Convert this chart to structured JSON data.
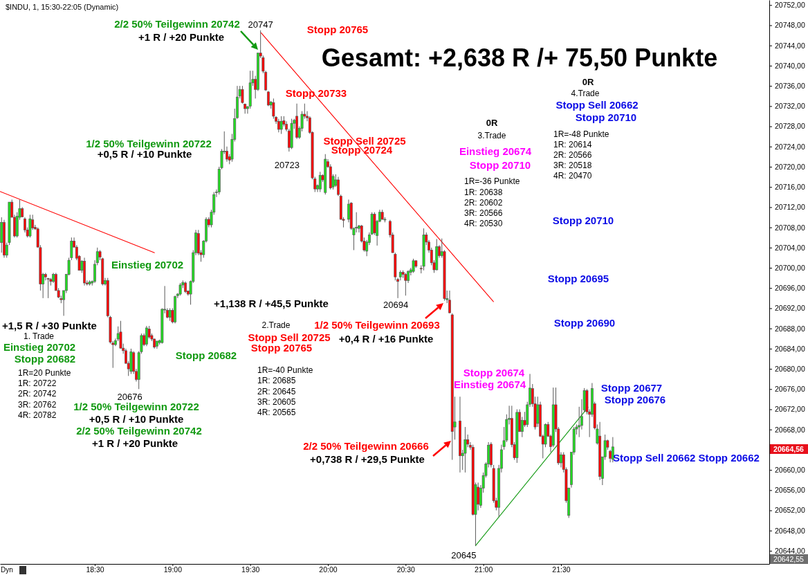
{
  "chart_data": {
    "type": "candlestick",
    "title": "$INDU, 1, 15:30-22:05 (Dynamic)",
    "subtitle": "Gesamt: +2,638 R /+ 75,50 Punkte",
    "x": [
      17.9,
      17.9167,
      17.9333,
      17.95,
      17.9667,
      17.9833,
      18,
      18.0167,
      18.0333,
      18.05,
      18.0667,
      18.0833,
      18.1,
      18.1167,
      18.1333,
      18.15,
      18.1667,
      18.1833,
      18.2,
      18.2167,
      18.2333,
      18.25,
      18.2667,
      18.2833,
      18.3,
      18.3167,
      18.3333,
      18.35,
      18.3667,
      18.3833,
      18.4,
      18.4167,
      18.4333,
      18.45,
      18.4667,
      18.4833,
      18.5,
      18.5167,
      18.5333,
      18.55,
      18.5667,
      18.5833,
      18.6,
      18.6167,
      18.6333,
      18.65,
      18.6667,
      18.6833,
      18.7,
      18.7167,
      18.7333,
      18.75,
      18.7667,
      18.7833,
      18.8,
      18.8167,
      18.8333,
      18.85,
      18.8667,
      18.8833,
      18.9,
      18.9167,
      18.9333,
      18.95,
      18.9667,
      18.9833,
      19,
      19.0167,
      19.0333,
      19.05,
      19.0667,
      19.0833,
      19.1,
      19.1167,
      19.1333,
      19.15,
      19.1667,
      19.1833,
      19.2,
      19.2167,
      19.2333,
      19.25,
      19.2667,
      19.2833,
      19.3,
      19.3167,
      19.3333,
      19.35,
      19.3667,
      19.3833,
      19.4,
      19.4167,
      19.4333,
      19.45,
      19.4667,
      19.4833,
      19.5,
      19.5167,
      19.5333,
      19.55,
      19.5667,
      19.5833,
      19.6,
      19.6167,
      19.6333,
      19.65,
      19.6667,
      19.6833,
      19.7,
      19.7167,
      19.7333,
      19.75,
      19.7667,
      19.7833,
      19.8,
      19.8167,
      19.8333,
      19.85,
      19.8667,
      19.8833,
      19.9,
      19.9167,
      19.9333,
      19.95,
      19.9667,
      19.9833,
      20,
      20.0167,
      20.0333,
      20.05,
      20.0667,
      20.0833,
      20.1,
      20.1333,
      20.15,
      20.1667,
      20.1833,
      20.2,
      20.2167,
      20.2333,
      20.25,
      20.2667,
      20.2833,
      20.3,
      20.3167,
      20.3333,
      20.35,
      20.3667,
      20.4,
      20.4167,
      20.4333,
      20.45,
      20.4667,
      20.4833,
      20.5,
      20.5167,
      20.5333,
      20.55,
      20.5667,
      20.6,
      20.6167,
      20.6333,
      20.65,
      20.6667,
      20.6833,
      20.7,
      20.7167,
      20.7333,
      20.75,
      20.7667,
      20.7833,
      20.8,
      20.8167,
      20.85,
      20.8667,
      20.8833,
      20.9,
      20.9167,
      20.9333,
      20.95,
      20.9667,
      20.9833,
      21,
      21.0167,
      21.0333,
      21.05,
      21.0667,
      21.0833,
      21.1,
      21.1167,
      21.1333,
      21.15,
      21.1667,
      21.1833,
      21.2,
      21.2167,
      21.2333,
      21.25,
      21.2667,
      21.2833,
      21.3,
      21.3167,
      21.3333,
      21.35,
      21.3667,
      21.3833,
      21.4,
      21.4167,
      21.4333,
      21.45,
      21.4667,
      21.4833,
      21.5,
      21.5167,
      21.5333,
      21.55,
      21.5667,
      21.5833,
      21.6,
      21.6167,
      21.6333,
      21.65,
      21.6667,
      21.6833,
      21.7,
      21.7167,
      21.7333,
      21.75,
      21.7667,
      21.7833,
      21.8,
      21.8167,
      21.8333
    ],
    "ohlc": [
      [
        20705,
        20710,
        20703,
        20709
      ],
      [
        20709,
        20709.5,
        20702,
        20702.5
      ],
      [
        20702.5,
        20705,
        20702,
        20704.5
      ],
      [
        20705,
        20713,
        20704.5,
        20713
      ],
      [
        20713,
        20713.5,
        20710,
        20710
      ],
      [
        20710,
        20710.5,
        20706,
        20706.3
      ],
      [
        20706.3,
        20711,
        20706,
        20710.2
      ],
      [
        20710,
        20713.5,
        20709.5,
        20711.7
      ],
      [
        20711.7,
        20712,
        20710,
        20710.1
      ],
      [
        20709.7,
        20710,
        20707,
        20707.5
      ],
      [
        20707.5,
        20708,
        20706,
        20706.3
      ],
      [
        20706.3,
        20710.5,
        20706,
        20709.7
      ],
      [
        20709.5,
        20710.5,
        20707.5,
        20707.9
      ],
      [
        20708,
        20708.5,
        20707.5,
        20707.7
      ],
      [
        20707.7,
        20708,
        20704,
        20704.1
      ],
      [
        20704,
        20704.5,
        20695.5,
        20696.8
      ],
      [
        20696.8,
        20699,
        20694,
        20698.7
      ],
      [
        20698.7,
        20699,
        20697.5,
        20698.2
      ],
      [
        20697.9,
        20698,
        20694,
        20697.8
      ],
      [
        20697.7,
        20698,
        20696.5,
        20697.3
      ],
      [
        20697.3,
        20699,
        20697,
        20698.7
      ],
      [
        20698.7,
        20699,
        20695.5,
        20695.5
      ],
      [
        20695.5,
        20696,
        20694,
        20694.2
      ],
      [
        20693.9,
        20694.5,
        20693,
        20693.7
      ],
      [
        20693.7,
        20695.5,
        20690.5,
        20695.5
      ],
      [
        20695.5,
        20698.8,
        20695,
        20698.7
      ],
      [
        20698.7,
        20702,
        20698.5,
        20701.5
      ],
      [
        20702,
        20706,
        20701.5,
        20705.3
      ],
      [
        20705.3,
        20706,
        20704,
        20704.1
      ],
      [
        20704.1,
        20704.5,
        20701.5,
        20701.9
      ],
      [
        20702.3,
        20702.5,
        20699.5,
        20699.5
      ],
      [
        20699.5,
        20701.5,
        20699,
        20701.3
      ],
      [
        20701.3,
        20702,
        20696.5,
        20697
      ],
      [
        20697,
        20697.5,
        20696.5,
        20696.8
      ],
      [
        20696.8,
        20697.5,
        20696.5,
        20697.2
      ],
      [
        20697,
        20697.5,
        20696.5,
        20697.3
      ],
      [
        20697.3,
        20701.5,
        20697,
        20700.7
      ],
      [
        20701,
        20704,
        20700.5,
        20703.2
      ],
      [
        20703.2,
        20703.5,
        20701.5,
        20702.1
      ],
      [
        20701.8,
        20702,
        20696.5,
        20696.8
      ],
      [
        20696.8,
        20698,
        20696.5,
        20697.5
      ],
      [
        20697.5,
        20698,
        20690.2,
        20690.5
      ],
      [
        20690.2,
        20690.5,
        20685,
        20685.3
      ],
      [
        20685.1,
        20685.5,
        20680.2,
        20684.8
      ],
      [
        20684.8,
        20686,
        20684.5,
        20685.6
      ],
      [
        20685.9,
        20688.4,
        20685.5,
        20687
      ],
      [
        20687.3,
        20689.5,
        20684,
        20684.1
      ],
      [
        20684.1,
        20685,
        20683,
        20683.6
      ],
      [
        20683.6,
        20684,
        20681,
        20681.1
      ],
      [
        20681.1,
        20681.5,
        20678.6,
        20680
      ],
      [
        20679.5,
        20684,
        20679,
        20683.4
      ],
      [
        20683.2,
        20683.5,
        20679,
        20679.5
      ],
      [
        20679.5,
        20680,
        20677.5,
        20677.9
      ],
      [
        20677.9,
        20683.5,
        20676,
        20683.2
      ],
      [
        20683.4,
        20687,
        20683,
        20686.6
      ],
      [
        20686.6,
        20687,
        20684.5,
        20684.8
      ],
      [
        20684.9,
        20688.5,
        20684.5,
        20688.1
      ],
      [
        20687.9,
        20688.5,
        20686,
        20686.3
      ],
      [
        20686.6,
        20687,
        20685.5,
        20685.9
      ],
      [
        20685.9,
        20686,
        20684,
        20684.3
      ],
      [
        20684.5,
        20685.5,
        20684,
        20685.5
      ],
      [
        20685.2,
        20685.8,
        20684.8,
        20685.6
      ],
      [
        20685.2,
        20692,
        20685,
        20691.8
      ],
      [
        20691.8,
        20696.4,
        20691,
        20691.8
      ],
      [
        20691.6,
        20692,
        20690,
        20690.2
      ],
      [
        20690.2,
        20692,
        20689.5,
        20691.6
      ],
      [
        20691.6,
        20692,
        20689,
        20689.3
      ],
      [
        20689.3,
        20694.5,
        20689,
        20694.3
      ],
      [
        20694.5,
        20695,
        20694,
        20694.8
      ],
      [
        20694.8,
        20697,
        20694.5,
        20696.6
      ],
      [
        20696.6,
        20697.5,
        20696,
        20697.1
      ],
      [
        20697,
        20697.3,
        20695,
        20695.3
      ],
      [
        20695.4,
        20695.5,
        20694.5,
        20694.8
      ],
      [
        20694.8,
        20697.5,
        20692.7,
        20697.3
      ],
      [
        20697.3,
        20703.5,
        20697,
        20703
      ],
      [
        20703,
        20707.5,
        20702.5,
        20706.9
      ],
      [
        20706.8,
        20707.5,
        20702.5,
        20702.9
      ],
      [
        20703,
        20703.5,
        20701.2,
        20702.6
      ],
      [
        20702.6,
        20705.5,
        20702,
        20705.3
      ],
      [
        20705.3,
        20710,
        20705,
        20709.6
      ],
      [
        20709.6,
        20710,
        20708,
        20708.5
      ],
      [
        20708.5,
        20711.5,
        20708,
        20711
      ],
      [
        20711,
        20715,
        20710.5,
        20714.5
      ],
      [
        20714.9,
        20715.5,
        20714,
        20715
      ],
      [
        20715,
        20720,
        20714.5,
        20719.5
      ],
      [
        20719.8,
        20723.5,
        20719.5,
        20723.1
      ],
      [
        20723.1,
        20727,
        20722.5,
        20723.1
      ],
      [
        20723.1,
        20724,
        20721,
        20721.5
      ],
      [
        20722,
        20722.5,
        20720.5,
        20721.3
      ],
      [
        20721.5,
        20726.5,
        20721,
        20725.4
      ],
      [
        20725.4,
        20731.5,
        20725,
        20729.5
      ],
      [
        20729.7,
        20736,
        20729.5,
        20733.8
      ],
      [
        20734,
        20736,
        20733.5,
        20735.3
      ],
      [
        20735.3,
        20736,
        20732.5,
        20732.7
      ],
      [
        20732.4,
        20732.5,
        20730.5,
        20731.5
      ],
      [
        20731.5,
        20732,
        20730.5,
        20731.9
      ],
      [
        20732,
        20739,
        20731.5,
        20736.6
      ],
      [
        20736.6,
        20739,
        20736,
        20737.3
      ],
      [
        20737.3,
        20738,
        20733.5,
        20735.3
      ],
      [
        20735.3,
        20742.5,
        20735,
        20742.5
      ],
      [
        20742.5,
        20747,
        20741.5,
        20741.9
      ],
      [
        20741.6,
        20742,
        20738.5,
        20738.9
      ],
      [
        20738.7,
        20739,
        20735,
        20735.2
      ],
      [
        20734.8,
        20735,
        20732,
        20732.2
      ],
      [
        20732.2,
        20733,
        20731.5,
        20732.8
      ],
      [
        20732.7,
        20733.5,
        20729.5,
        20730
      ],
      [
        20729.8,
        20730,
        20728.5,
        20729
      ],
      [
        20729,
        20729.5,
        20726.8,
        20727.4
      ],
      [
        20727.4,
        20730,
        20726.5,
        20729
      ],
      [
        20729.1,
        20730,
        20728,
        20728.4
      ],
      [
        20728.4,
        20729,
        20727,
        20727.4
      ],
      [
        20727.1,
        20727.5,
        20723,
        20723.8
      ],
      [
        20723.8,
        20729.5,
        20723.5,
        20728.6
      ],
      [
        20728.6,
        20729.5,
        20727.5,
        20729.2
      ],
      [
        20730,
        20732.5,
        20725.5,
        20725.8
      ],
      [
        20725.8,
        20728,
        20725.5,
        20727.6
      ],
      [
        20727.6,
        20731,
        20727,
        20730.4
      ],
      [
        20730.4,
        20732.5,
        20729.5,
        20730
      ],
      [
        20730,
        20731,
        20729,
        20729.7
      ],
      [
        20729.7,
        20730,
        20726.5,
        20726.8
      ],
      [
        20726.8,
        20727,
        20717.5,
        20717.8
      ],
      [
        20717.6,
        20718,
        20715,
        20715.6
      ],
      [
        20715.6,
        20716.5,
        20715,
        20716.3
      ],
      [
        20715.6,
        20719,
        20715,
        20718.3
      ],
      [
        20718.3,
        20718.5,
        20717,
        20717.4
      ],
      [
        20714.9,
        20722.5,
        20714.5,
        20721.5
      ],
      [
        20721,
        20721.5,
        20719.8,
        20720
      ],
      [
        20720,
        20720.5,
        20715.5,
        20715.8
      ],
      [
        20716,
        20718.5,
        20715.5,
        20718.1
      ],
      [
        20716.3,
        20718.5,
        20716,
        20717.4
      ],
      [
        20717.4,
        20718,
        20714.2,
        20714.5
      ],
      [
        20714.2,
        20714.5,
        20709.5,
        20709.6
      ],
      [
        20709.6,
        20710,
        20708,
        20709.4
      ],
      [
        20709.6,
        20713.5,
        20709,
        20712.6
      ],
      [
        20712.8,
        20713,
        20707.5,
        20707.8
      ],
      [
        20706.5,
        20708,
        20703.5,
        20707.8
      ],
      [
        20708,
        20711,
        20707,
        20708
      ],
      [
        20707.8,
        20708.5,
        20707,
        20708.3
      ],
      [
        20708.3,
        20708.5,
        20705,
        20705.3
      ],
      [
        20705.3,
        20706,
        20703.2,
        20703.5
      ],
      [
        20703.3,
        20705.5,
        20702.3,
        20705.1
      ],
      [
        20705,
        20707,
        20704.5,
        20706.5
      ],
      [
        20706.7,
        20711,
        20706.5,
        20710.6
      ],
      [
        20710.6,
        20711,
        20706.5,
        20706.9
      ],
      [
        20706.4,
        20709.5,
        20704.4,
        20709.2
      ],
      [
        20709.2,
        20711.5,
        20709,
        20711
      ],
      [
        20711,
        20711.5,
        20709.5,
        20709.6
      ],
      [
        20709.6,
        20710,
        20709,
        20709.6
      ],
      [
        20709.2,
        20709.5,
        20706,
        20706.5
      ],
      [
        20706.5,
        20707,
        20703,
        20703
      ],
      [
        20702.7,
        20703,
        20697.5,
        20698.2
      ],
      [
        20697.7,
        20698,
        20694,
        20697.3
      ],
      [
        20698.2,
        20699.5,
        20697.5,
        20699.1
      ],
      [
        20699.1,
        20699.5,
        20698,
        20698.7
      ],
      [
        20698.7,
        20699,
        20694.5,
        20697.5
      ],
      [
        20697.5,
        20699.5,
        20697,
        20699.3
      ],
      [
        20699.1,
        20700,
        20698.5,
        20699.6
      ],
      [
        20699.3,
        20701.8,
        20699,
        20701.4
      ],
      [
        20701.4,
        20701.5,
        20700,
        20700.3
      ],
      [
        20699.9,
        20700.5,
        20698.9,
        20699.8
      ],
      [
        20700.3,
        20707.8,
        20699.5,
        20706.5
      ],
      [
        20706.5,
        20707,
        20704.5,
        20705.1
      ],
      [
        20705.1,
        20705.5,
        20703,
        20703.5
      ],
      [
        20703.5,
        20704,
        20700.5,
        20701
      ],
      [
        20701,
        20701.5,
        20699,
        20699.6
      ],
      [
        20699.6,
        20705.7,
        20699.5,
        20704.2
      ],
      [
        20704.2,
        20704.5,
        20702,
        20702.4
      ],
      [
        20702.4,
        20705.8,
        20702,
        20703.2
      ],
      [
        20703.2,
        20703.5,
        20693.5,
        20693.9
      ],
      [
        20693.7,
        20695.5,
        20693,
        20693.9
      ],
      [
        20693.6,
        20695.5,
        20691,
        20691.1
      ],
      [
        20690.7,
        20691,
        20662,
        20667.6
      ],
      [
        20668.5,
        20674.5,
        20666,
        20669.5
      ],
      [
        20669.7,
        20674.5,
        20659.5,
        20662.8
      ],
      [
        20662.8,
        20664,
        20660,
        20663.3
      ],
      [
        20663.3,
        20668.5,
        20659.5,
        20666
      ],
      [
        20666,
        20667,
        20664.5,
        20665.1
      ],
      [
        20664.9,
        20665.5,
        20664,
        20664.5
      ],
      [
        20664.5,
        20665,
        20651,
        20651.2
      ],
      [
        20651.2,
        20657.5,
        20645,
        20657.1
      ],
      [
        20656.6,
        20657.5,
        20652,
        20653.2
      ],
      [
        20653,
        20657,
        20652.5,
        20656.4
      ],
      [
        20656.4,
        20659.5,
        20655.5,
        20658.9
      ],
      [
        20658.9,
        20661.5,
        20658.5,
        20661.2
      ],
      [
        20661.2,
        20665.5,
        20660.5,
        20664.9
      ],
      [
        20665.1,
        20665.5,
        20660.5,
        20661
      ],
      [
        20660.3,
        20661,
        20653.5,
        20653.9
      ],
      [
        20653.9,
        20654.5,
        20652,
        20652.6
      ],
      [
        20652.6,
        20661,
        20650.7,
        20660.3
      ],
      [
        20660.3,
        20665,
        20659.5,
        20664
      ],
      [
        20664.6,
        20668.5,
        20664,
        20665.8
      ],
      [
        20665.9,
        20671,
        20665.5,
        20670
      ],
      [
        20670,
        20672.7,
        20669,
        20670.2
      ],
      [
        20670.2,
        20672.7,
        20664.5,
        20665
      ],
      [
        20665,
        20665.5,
        20662,
        20662.4
      ],
      [
        20662.4,
        20672,
        20661.4,
        20671.4
      ],
      [
        20671.4,
        20672,
        20667.5,
        20667.6
      ],
      [
        20667.6,
        20670.5,
        20666.5,
        20669.8
      ],
      [
        20669.8,
        20671.5,
        20668.5,
        20668.9
      ],
      [
        20669,
        20673.5,
        20668.5,
        20672.9
      ],
      [
        20673,
        20679,
        20672.5,
        20676.2
      ],
      [
        20676.1,
        20677,
        20672.5,
        20673.1
      ],
      [
        20673.1,
        20674.5,
        20668,
        20668.5
      ],
      [
        20669.2,
        20674.5,
        20668.5,
        20672.9
      ],
      [
        20672.9,
        20673.5,
        20666.5,
        20666.7
      ],
      [
        20666.7,
        20667,
        20662.3,
        20665.1
      ],
      [
        20665.1,
        20669.2,
        20664.5,
        20669
      ],
      [
        20669,
        20669.5,
        20666.5,
        20666.7
      ],
      [
        20666.7,
        20667,
        20663.5,
        20664.6
      ],
      [
        20664.9,
        20676.3,
        20664.5,
        20672.9
      ],
      [
        20672.9,
        20676.3,
        20667.5,
        20668.1
      ],
      [
        20668.1,
        20668.5,
        20661,
        20661.4
      ],
      [
        20661.4,
        20663.5,
        20660.5,
        20663
      ],
      [
        20663,
        20663.5,
        20659.5,
        20660.1
      ],
      [
        20660.1,
        20660.5,
        20653.5,
        20653.9
      ],
      [
        20651,
        20656.5,
        20650.5,
        20656.4
      ],
      [
        20657.1,
        20663.5,
        20656.5,
        20663.5
      ],
      [
        20663.5,
        20668.5,
        20663,
        20668.1
      ],
      [
        20668.1,
        20669,
        20667,
        20668.5
      ],
      [
        20668.5,
        20672.5,
        20666.5,
        20668.8
      ],
      [
        20668.8,
        20674,
        20668,
        20670.6
      ],
      [
        20671.9,
        20676.2,
        20671.5,
        20675.7
      ],
      [
        20675.7,
        20676,
        20671,
        20671.5
      ],
      [
        20671.5,
        20672,
        20666.5,
        20671
      ],
      [
        20671,
        20677.2,
        20670.5,
        20676.1
      ],
      [
        20673.1,
        20673.5,
        20668,
        20668.3
      ],
      [
        20665.3,
        20669,
        20665,
        20668.1
      ],
      [
        20666.7,
        20669.5,
        20658,
        20658.7
      ],
      [
        20658.3,
        20662.6,
        20657,
        20662.6
      ],
      [
        20662.6,
        20667,
        20662,
        20665.8
      ],
      [
        20665.8,
        20666,
        20664,
        20664.5
      ],
      [
        20663.7,
        20664,
        20661.5,
        20662.3
      ],
      [
        20662.1,
        20666.5,
        20661.5,
        20664.56
      ]
    ],
    "series": [
      {
        "type": "line",
        "x": [
          17.89,
          18.884
        ],
        "values": [
          20715.1,
          20703
        ],
        "color": "#ff0000"
      },
      {
        "type": "line",
        "x": [
          19.57,
          21.065
        ],
        "values": [
          20746.5,
          20693.3
        ],
        "color": "#ff0000"
      },
      {
        "type": "line",
        "x": [
          20.95,
          21.674
        ],
        "values": [
          20645,
          20672.4
        ],
        "color": "#119911"
      }
    ],
    "xlim": [
      17.89,
      22.84
    ],
    "xticks": [
      {
        "value": 18.5,
        "label": "18:30"
      },
      {
        "value": 19,
        "label": "19:00"
      },
      {
        "value": 19.5,
        "label": "19:30"
      },
      {
        "value": 20,
        "label": "20:00"
      },
      {
        "value": 20.5,
        "label": "20:30"
      },
      {
        "value": 21,
        "label": "21:00"
      },
      {
        "value": 21.5,
        "label": "21:30"
      }
    ],
    "ylim": [
      20641.4,
      20753
    ],
    "yticks": [
      {
        "value": 20644,
        "label": "20644,00"
      },
      {
        "value": 20648,
        "label": "20648,00"
      },
      {
        "value": 20652,
        "label": "20652,00"
      },
      {
        "value": 20656,
        "label": "20656,00"
      },
      {
        "value": 20660,
        "label": "20660,00"
      },
      {
        "value": 20668,
        "label": "20668,00"
      },
      {
        "value": 20672,
        "label": "20672,00"
      },
      {
        "value": 20676,
        "label": "20676,00"
      },
      {
        "value": 20680,
        "label": "20680,00"
      },
      {
        "value": 20684,
        "label": "20684,00"
      },
      {
        "value": 20688,
        "label": "20688,00"
      },
      {
        "value": 20692,
        "label": "20692,00"
      },
      {
        "value": 20696,
        "label": "20696,00"
      },
      {
        "value": 20700,
        "label": "20700,00"
      },
      {
        "value": 20704,
        "label": "20704,00"
      },
      {
        "value": 20708,
        "label": "20708,00"
      },
      {
        "value": 20712,
        "label": "20712,00"
      },
      {
        "value": 20716,
        "label": "20716,00"
      },
      {
        "value": 20720,
        "label": "20720,00"
      },
      {
        "value": 20724,
        "label": "20724,00"
      },
      {
        "value": 20728,
        "label": "20728,00"
      },
      {
        "value": 20732,
        "label": "20732,00"
      },
      {
        "value": 20736,
        "label": "20736,00"
      },
      {
        "value": 20740,
        "label": "20740,00"
      },
      {
        "value": 20744,
        "label": "20744,00"
      },
      {
        "value": 20748,
        "label": "20748,00"
      },
      {
        "value": 20752,
        "label": "20752,00"
      }
    ],
    "annotations": [
      "2/2 50% Teilgewinn 20742",
      "+1 R / +20 Punkte",
      {
        "text": "20747",
        "x": 19.5667,
        "y": 20747
      },
      "Stopp 20765",
      "Stopp 20733",
      "1/2 50% Teilgewinn 20722",
      "+0,5 R / +10 Punkte",
      "Stopp Sell 20725",
      "Stopp 20724",
      {
        "text": "20723",
        "x": 19.75,
        "y": 20723
      },
      "Einstieg 20702",
      "+1,138 R / +45,5 Punkte",
      {
        "text": "20694",
        "x": 20.45,
        "y": 20694
      },
      "+1,5 R / +30 Punkte",
      "1. Trade",
      "Einstieg 20702",
      "Stopp 20682",
      "1R=20 Punkte",
      "1R: 20722",
      "2R: 20742",
      "3R: 20762",
      "4R: 20782",
      {
        "text": "20676",
        "x": 18.7833,
        "y": 20676
      },
      "1/2 50% Teilgewinn 20722",
      "+0,5 R / +10 Punkte",
      "2/2 50% Teilgewinn 20742",
      "+1 R / +20 Punkte",
      "Stopp 20682",
      "2.Trade",
      "Stopp Sell 20725",
      "Stopp 20765",
      "1R=-40 Punkte",
      "1R: 20685",
      "2R: 20645",
      "3R: 20605",
      "4R: 20565",
      "1/2 50% Teilgewinn 20693",
      "+0,4 R / +16 Punkte",
      "Stopp 20674",
      "Einstieg 20674",
      "2/2 50% Teilgewinn 20666",
      "+0,738 R / +29,5 Punkte",
      {
        "text": "20645",
        "x": 20.95,
        "y": 20645
      },
      "0R",
      "3.Trade",
      "Einstieg 20674",
      "Stopp 20710",
      "1R=-36 Punkte",
      "1R: 20638",
      "2R: 20602",
      "3R: 20566",
      "4R: 20530",
      "0R",
      "4.Trade",
      "Stopp Sell 20662",
      "Stopp 20710",
      "1R=-48 Punkte",
      "1R: 20614",
      "2R: 20566",
      "3R: 20518",
      "4R: 20470",
      "Stopp 20710",
      "Stopp 20695",
      "Stopp 20690",
      "Stopp 20677",
      "Stopp 20676",
      "Stopp Sell 20662 Stopp 20662",
      "20664,56",
      "20642,55",
      "Dyn"
    ]
  }
}
